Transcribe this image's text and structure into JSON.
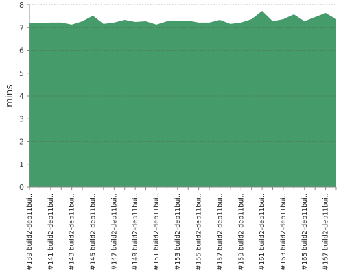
{
  "chart_data": {
    "type": "area",
    "y_label": "mins",
    "color": "#469b6b",
    "categories": [
      "#139 build2-deb11bui...",
      null,
      "#141 build2-deb11bui...",
      null,
      "#143 build2-deb11bui...",
      null,
      "#145 build2-deb11bui...",
      null,
      "#147 build2-deb11bui...",
      null,
      "#149 build2-deb11bui...",
      null,
      "#151 build2-deb11bui...",
      null,
      "#153 build2-deb11bui...",
      null,
      "#155 build2-deb11bui...",
      null,
      "#157 build2-deb11bui...",
      null,
      "#159 build2-deb11bui...",
      null,
      "#161 build2-deb11bui...",
      null,
      "#163 build2-deb11bui...",
      null,
      "#165 build2-deb11bui...",
      null,
      "#167 build2-deb11bui...",
      null
    ],
    "values": [
      7.19,
      7.19,
      7.22,
      7.22,
      7.13,
      7.28,
      7.52,
      7.16,
      7.22,
      7.34,
      7.25,
      7.28,
      7.13,
      7.28,
      7.31,
      7.31,
      7.22,
      7.22,
      7.34,
      7.16,
      7.22,
      7.37,
      7.73,
      7.28,
      7.37,
      7.58,
      7.28,
      7.46,
      7.64,
      7.37
    ],
    "ylim": [
      0,
      8
    ],
    "yticks": [
      0,
      1,
      2,
      3,
      4,
      5,
      6,
      7,
      8
    ],
    "grid": true
  }
}
